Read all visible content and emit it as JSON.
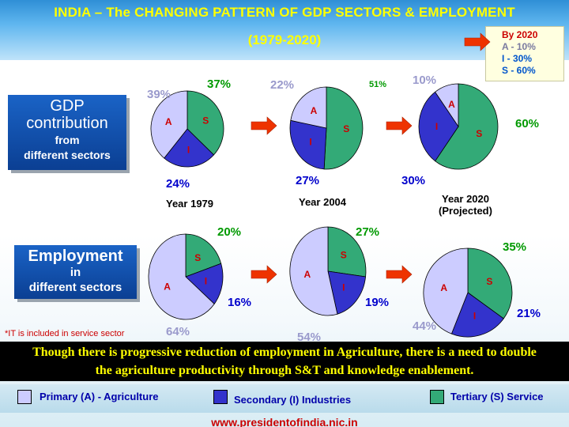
{
  "header": {
    "title": "INDIA – The CHANGING  PATTERN OF GDP SECTORS & EMPLOYMENT",
    "subtitle": "(1979-2020)"
  },
  "projection_box": {
    "heading": "By 2020",
    "lines": [
      "A  - 10%",
      "I  - 30%",
      "S  - 60%"
    ]
  },
  "gdp_box": {
    "line1": "GDP",
    "line2": "contribution",
    "line3": "from",
    "line4": "different sectors"
  },
  "employment_box": {
    "line1": "Employment",
    "line2": "in",
    "line3": "different sectors"
  },
  "note": "*IT is included in service sector",
  "banner": {
    "line1": "Though there is progressive reduction of  employment in Agriculture, there is a need to double",
    "line2": "the agriculture productivity through S&T and knowledge enablement."
  },
  "legend": {
    "a": "Primary (A) - Agriculture",
    "i": "Secondary (I) Industries",
    "s": "Tertiary (S) Service"
  },
  "footer": "www.presidentofindia.nic.in",
  "colors": {
    "agriculture": "#ccccff",
    "industry": "#3333cc",
    "service": "#33aa77",
    "arrow": "#ee3300"
  },
  "chart_data": [
    {
      "type": "pie",
      "group": "GDP",
      "year_label": "Year 1979",
      "categories": [
        "A",
        "I",
        "S"
      ],
      "values": [
        39,
        24,
        37
      ],
      "labels": [
        "39%",
        "24%",
        "37%"
      ]
    },
    {
      "type": "pie",
      "group": "GDP",
      "year_label": "Year 2004",
      "categories": [
        "A",
        "I",
        "S"
      ],
      "values": [
        22,
        27,
        51
      ],
      "labels": [
        "22%",
        "27%",
        "51%"
      ]
    },
    {
      "type": "pie",
      "group": "GDP",
      "year_label": "Year 2020",
      "year_sub": "(Projected)",
      "categories": [
        "A",
        "I",
        "S"
      ],
      "values": [
        10,
        30,
        60
      ],
      "labels": [
        "10%",
        "30%",
        "60%"
      ]
    },
    {
      "type": "pie",
      "group": "Employment",
      "categories": [
        "A",
        "I",
        "S"
      ],
      "values": [
        64,
        16,
        20
      ],
      "labels": [
        "64%",
        "16%",
        "20%"
      ]
    },
    {
      "type": "pie",
      "group": "Employment",
      "categories": [
        "A",
        "I",
        "S"
      ],
      "values": [
        54,
        19,
        27
      ],
      "labels": [
        "54%",
        "19%",
        "27%"
      ]
    },
    {
      "type": "pie",
      "group": "Employment",
      "categories": [
        "A",
        "I",
        "S"
      ],
      "values": [
        44,
        21,
        35
      ],
      "labels": [
        "44%",
        "21%",
        "35%"
      ]
    }
  ]
}
